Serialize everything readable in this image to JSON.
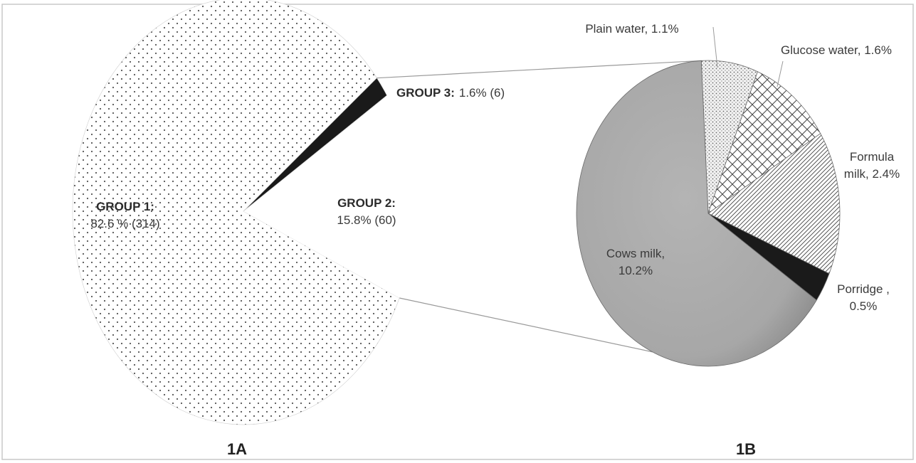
{
  "chart_data": [
    {
      "type": "pie",
      "caption": "1A",
      "slices": [
        {
          "name": "GROUP 1",
          "label": "GROUP 1:",
          "value_text": "82.6 % (314)",
          "percent": 82.6,
          "count": 314,
          "fill": "dots"
        },
        {
          "name": "GROUP 2",
          "label": "GROUP 2:",
          "value_text": "15.8% (60)",
          "percent": 15.8,
          "count": 60,
          "fill": "white"
        },
        {
          "name": "GROUP 3",
          "label": "GROUP 3:",
          "value_text": "1.6% (6)",
          "percent": 1.6,
          "count": 6,
          "fill": "black"
        }
      ]
    },
    {
      "type": "pie",
      "caption": "1B",
      "slices": [
        {
          "name": "Plain water",
          "label": "Plain water, 1.1%",
          "percent": 1.1,
          "fill": "fine-dots"
        },
        {
          "name": "Glucose water",
          "label": "Glucose water, 1.6%",
          "percent": 1.6,
          "fill": "crosshatch"
        },
        {
          "name": "Formula milk",
          "label_lines": [
            "Formula",
            "milk, 2.4%"
          ],
          "percent": 2.4,
          "fill": "diagonal"
        },
        {
          "name": "Porridge",
          "label_lines": [
            "Porridge ,",
            "0.5%"
          ],
          "percent": 0.5,
          "fill": "black"
        },
        {
          "name": "Cows milk",
          "label_lines": [
            "Cows milk,",
            "10.2%"
          ],
          "percent": 10.2,
          "fill": "gray"
        }
      ]
    }
  ],
  "colors": {
    "border": "#c8c8c8",
    "dots": "#555555",
    "black": "#1a1a1a",
    "gray": "#a9a9a9",
    "hatch": "#444444"
  }
}
